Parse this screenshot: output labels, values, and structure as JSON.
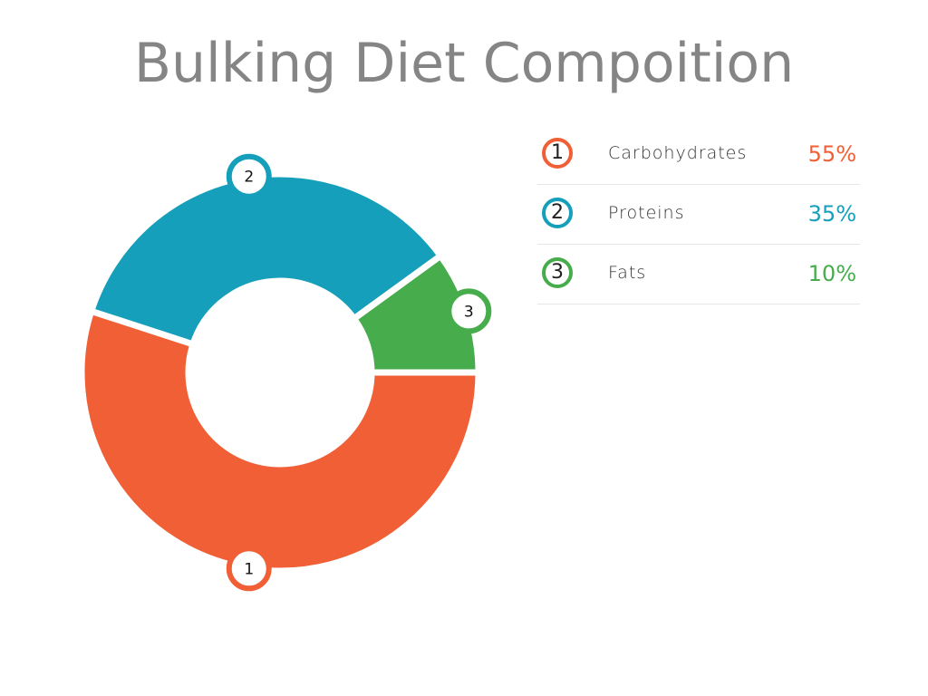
{
  "chart_data": {
    "type": "pie",
    "title": "Bulking Diet Compoition",
    "slices": [
      {
        "rank": "1",
        "label": "Carbohydrates",
        "value": 55,
        "value_text": "55%",
        "color": "#f05f35"
      },
      {
        "rank": "2",
        "label": "Proteins",
        "value": 35,
        "value_text": "35%",
        "color": "#169fba"
      },
      {
        "rank": "3",
        "label": "Fats",
        "value": 10,
        "value_text": "10%",
        "color": "#47ac4c"
      }
    ],
    "legend_position": "right",
    "style": "donut"
  }
}
